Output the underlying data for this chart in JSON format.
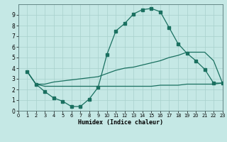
{
  "xlabel": "Humidex (Indice chaleur)",
  "bg_color": "#c5e8e5",
  "grid_color": "#a8d0cc",
  "line_color": "#1a7060",
  "xlim": [
    0,
    23
  ],
  "ylim": [
    0,
    10
  ],
  "xticks": [
    0,
    1,
    2,
    3,
    4,
    5,
    6,
    7,
    8,
    9,
    10,
    11,
    12,
    13,
    14,
    15,
    16,
    17,
    18,
    19,
    20,
    21,
    22,
    23
  ],
  "yticks": [
    0,
    1,
    2,
    3,
    4,
    5,
    6,
    7,
    8,
    9
  ],
  "curve1_x": [
    1,
    2,
    3,
    4,
    5,
    6,
    7,
    8,
    9,
    10,
    11,
    12,
    13,
    14,
    15,
    16,
    17,
    18,
    19,
    20,
    21,
    22,
    23
  ],
  "curve1_y": [
    3.7,
    2.5,
    1.8,
    1.2,
    0.9,
    0.4,
    0.4,
    1.1,
    2.2,
    5.3,
    7.5,
    8.2,
    9.1,
    9.5,
    9.6,
    9.3,
    7.8,
    6.3,
    5.4,
    4.7,
    3.9,
    2.6,
    2.6
  ],
  "curve2_x": [
    1,
    2,
    3,
    4,
    5,
    6,
    7,
    8,
    9,
    10,
    11,
    12,
    13,
    14,
    15,
    16,
    17,
    18,
    19,
    20,
    21,
    22,
    23
  ],
  "curve2_y": [
    3.7,
    2.5,
    2.5,
    2.7,
    2.8,
    2.9,
    3.0,
    3.1,
    3.2,
    3.5,
    3.8,
    4.0,
    4.1,
    4.3,
    4.5,
    4.7,
    5.0,
    5.2,
    5.5,
    5.5,
    5.5,
    4.7,
    2.6
  ],
  "curve3_x": [
    1,
    2,
    3,
    4,
    5,
    6,
    7,
    8,
    9,
    10,
    11,
    12,
    13,
    14,
    15,
    16,
    17,
    18,
    19,
    20,
    21,
    22,
    23
  ],
  "curve3_y": [
    3.7,
    2.5,
    2.3,
    2.3,
    2.3,
    2.3,
    2.3,
    2.3,
    2.3,
    2.3,
    2.3,
    2.3,
    2.3,
    2.3,
    2.3,
    2.4,
    2.4,
    2.4,
    2.5,
    2.5,
    2.5,
    2.5,
    2.6
  ]
}
